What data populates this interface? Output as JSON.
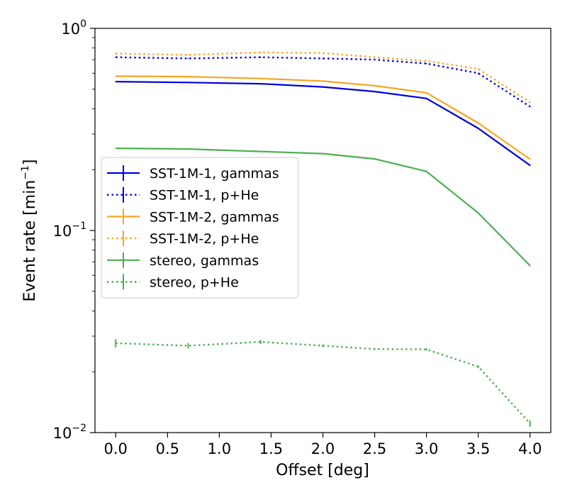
{
  "chart_data": {
    "type": "line",
    "title": "",
    "xlabel": "Offset [deg]",
    "ylabel_main": "Event rate [min",
    "ylabel_sup": "−1",
    "ylabel_end": "]",
    "yscale": "log",
    "xlim": [
      -0.2,
      4.2
    ],
    "ylim": [
      0.01,
      1.0
    ],
    "x_ticks": [
      {
        "value": 0.0,
        "label": "0.0"
      },
      {
        "value": 0.5,
        "label": "0.5"
      },
      {
        "value": 1.0,
        "label": "1.0"
      },
      {
        "value": 1.5,
        "label": "1.5"
      },
      {
        "value": 2.0,
        "label": "2.0"
      },
      {
        "value": 2.5,
        "label": "2.5"
      },
      {
        "value": 3.0,
        "label": "3.0"
      },
      {
        "value": 3.5,
        "label": "3.5"
      },
      {
        "value": 4.0,
        "label": "4.0"
      }
    ],
    "y_ticks": [
      {
        "value": 1.0,
        "base": "10",
        "exp": "0"
      },
      {
        "value": 0.1,
        "base": "10",
        "exp": "−1"
      },
      {
        "value": 0.01,
        "base": "10",
        "exp": "−2"
      }
    ],
    "legend_position": "center-left",
    "series": [
      {
        "name": "SST-1M-1, gammas",
        "color": "#0000dd",
        "style": "solid",
        "x": [
          0.0,
          0.7,
          1.4,
          2.0,
          2.5,
          3.0,
          3.5,
          4.0
        ],
        "values": [
          0.545,
          0.54,
          0.532,
          0.513,
          0.487,
          0.45,
          0.32,
          0.21
        ]
      },
      {
        "name": "SST-1M-1, p+He",
        "color": "#0000dd",
        "style": "dotted",
        "x": [
          0.0,
          0.7,
          1.4,
          2.0,
          2.5,
          3.0,
          3.5,
          4.0
        ],
        "values": [
          0.72,
          0.71,
          0.72,
          0.71,
          0.7,
          0.67,
          0.6,
          0.41
        ]
      },
      {
        "name": "SST-1M-2, gammas",
        "color": "#f5a623",
        "style": "solid",
        "x": [
          0.0,
          0.7,
          1.4,
          2.0,
          2.5,
          3.0,
          3.5,
          4.0
        ],
        "values": [
          0.58,
          0.577,
          0.565,
          0.548,
          0.52,
          0.48,
          0.34,
          0.225
        ]
      },
      {
        "name": "SST-1M-2, p+He",
        "color": "#f5a623",
        "style": "dotted",
        "x": [
          0.0,
          0.7,
          1.4,
          2.0,
          2.5,
          3.0,
          3.5,
          4.0
        ],
        "values": [
          0.75,
          0.74,
          0.76,
          0.755,
          0.72,
          0.69,
          0.63,
          0.43
        ]
      },
      {
        "name": "stereo, gammas",
        "color": "#4caf50",
        "style": "solid",
        "x": [
          0.0,
          0.7,
          1.4,
          2.0,
          2.5,
          3.0,
          3.5,
          4.0
        ],
        "values": [
          0.255,
          0.253,
          0.246,
          0.24,
          0.226,
          0.196,
          0.122,
          0.067
        ]
      },
      {
        "name": "stereo, p+He",
        "color": "#4caf50",
        "style": "dotted",
        "x": [
          0.0,
          0.7,
          1.4,
          2.0,
          2.5,
          3.0,
          3.5,
          4.0
        ],
        "values": [
          0.0277,
          0.0269,
          0.0281,
          0.0269,
          0.0259,
          0.0258,
          0.0212,
          0.0111
        ],
        "errors": [
          0.0013,
          0.0008,
          0.0006,
          0.0004,
          0.0003,
          0.0003,
          0.0003,
          0.0004
        ]
      }
    ]
  }
}
